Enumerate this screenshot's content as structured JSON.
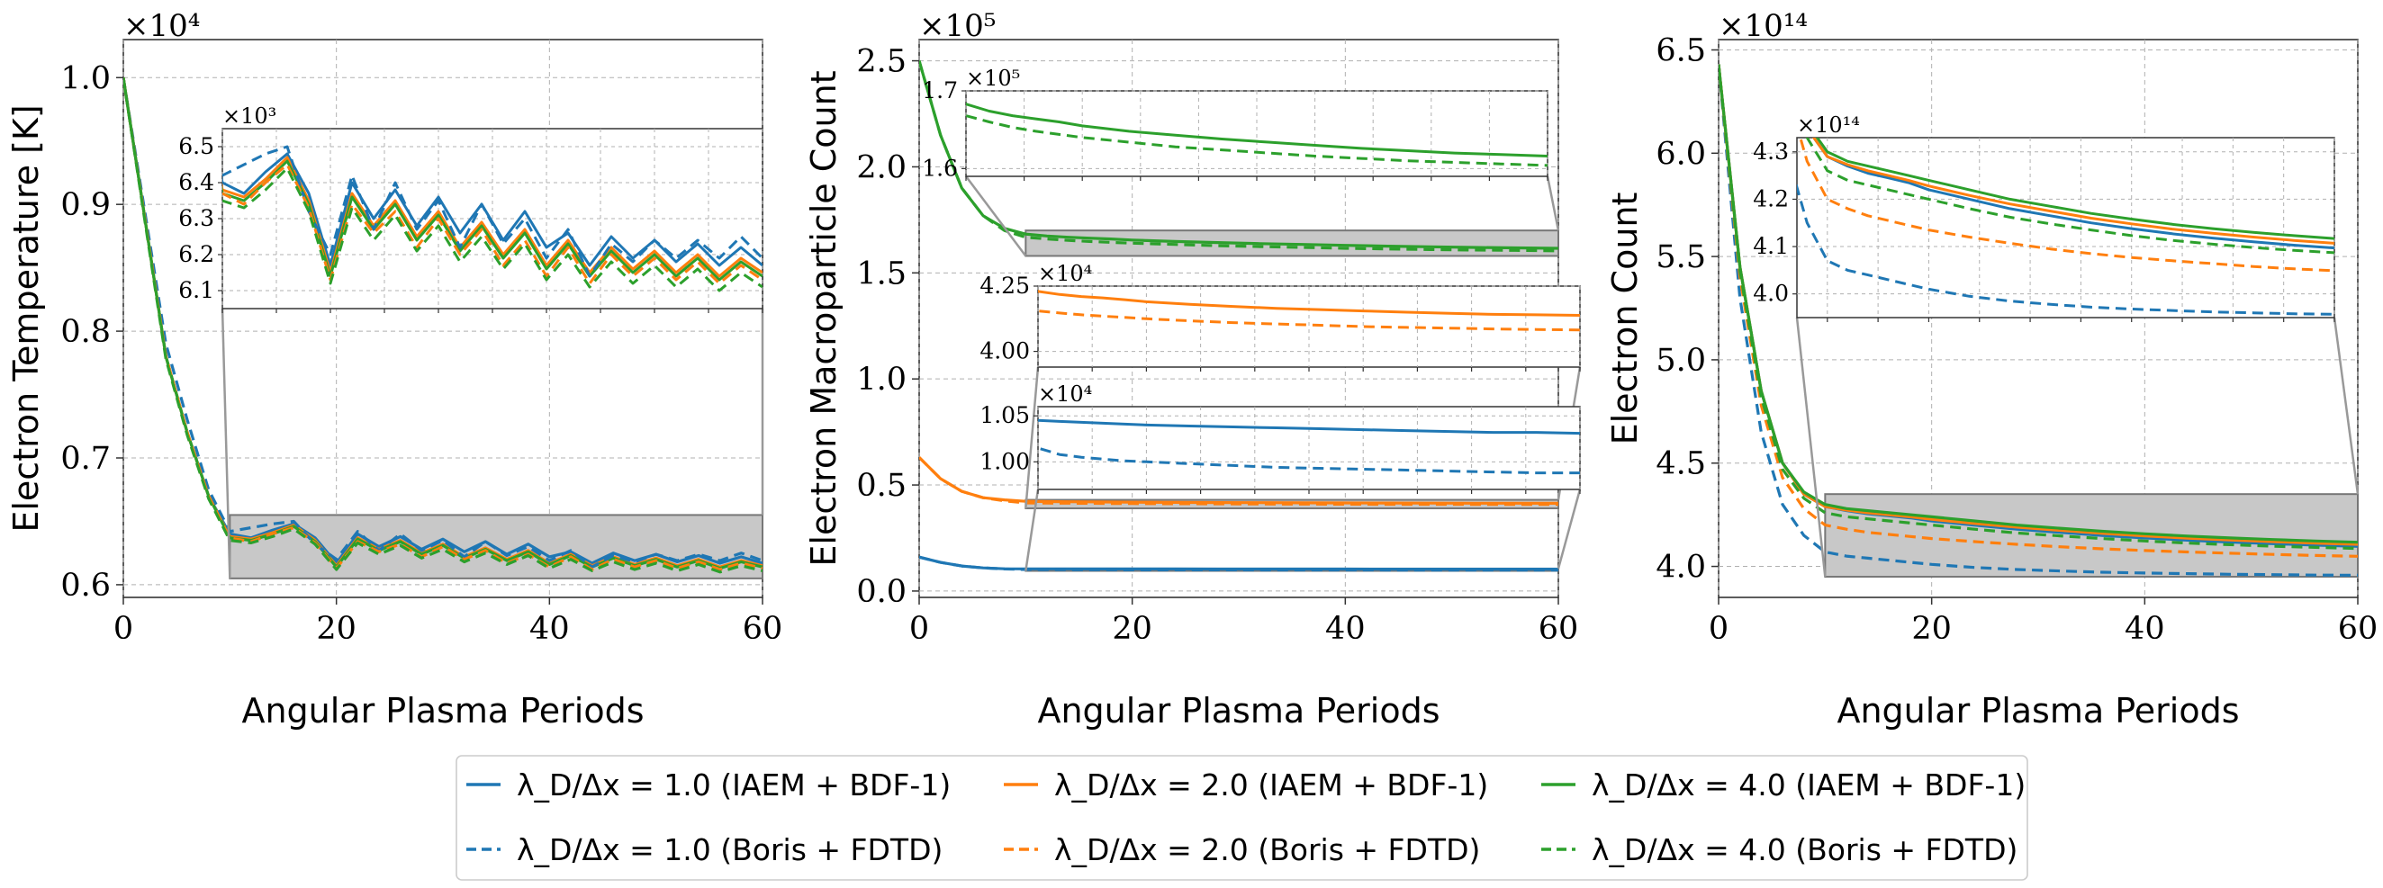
{
  "figure": {
    "legend": {
      "entries": [
        {
          "label": "λ_D/Δx = 1.0 (IAEM + BDF-1)",
          "color": "#1f77b4",
          "dash": false
        },
        {
          "label": "λ_D/Δx = 2.0 (IAEM + BDF-1)",
          "color": "#ff7f0e",
          "dash": false
        },
        {
          "label": "λ_D/Δx = 4.0 (IAEM + BDF-1)",
          "color": "#2ca02c",
          "dash": false
        },
        {
          "label": "λ_D/Δx = 1.0 (Boris + FDTD)",
          "color": "#1f77b4",
          "dash": true
        },
        {
          "label": "λ_D/Δx = 2.0 (Boris + FDTD)",
          "color": "#ff7f0e",
          "dash": true
        },
        {
          "label": "λ_D/Δx = 4.0 (Boris + FDTD)",
          "color": "#2ca02c",
          "dash": true
        }
      ]
    }
  },
  "chart_data": [
    {
      "type": "line",
      "id": "temperature",
      "xlabel": "Angular Plasma Periods",
      "ylabel": "Electron Temperature [K]",
      "multiplier": "×10⁴",
      "xlim": [
        0,
        60
      ],
      "ylim": [
        0.59,
        1.03
      ],
      "xticks": [
        "0",
        "20",
        "40",
        "60"
      ],
      "xtick_values": [
        0,
        20,
        40,
        60
      ],
      "yticks": [
        "0.6",
        "0.7",
        "0.8",
        "0.9",
        "1.0"
      ],
      "ytick_values": [
        0.6,
        0.7,
        0.8,
        0.9,
        1.0
      ],
      "x": [
        0,
        2,
        4,
        6,
        8,
        10,
        12,
        14,
        16,
        18,
        20,
        22,
        24,
        26,
        28,
        30,
        32,
        34,
        36,
        38,
        40,
        42,
        44,
        46,
        48,
        50,
        52,
        54,
        56,
        58,
        60
      ],
      "series": [
        {
          "name": "λ_D/Δx = 1.0 (IAEM + BDF-1)",
          "color": "#1f77b4",
          "dash": false,
          "values": [
            1.0,
            0.89,
            0.78,
            0.72,
            0.67,
            0.64,
            0.637,
            0.643,
            0.648,
            0.637,
            0.617,
            0.64,
            0.63,
            0.638,
            0.628,
            0.636,
            0.626,
            0.634,
            0.624,
            0.632,
            0.622,
            0.626,
            0.617,
            0.625,
            0.619,
            0.624,
            0.618,
            0.623,
            0.617,
            0.622,
            0.617
          ]
        },
        {
          "name": "λ_D/Δx = 2.0 (IAEM + BDF-1)",
          "color": "#ff7f0e",
          "dash": false,
          "values": [
            1.0,
            0.89,
            0.78,
            0.72,
            0.67,
            0.638,
            0.636,
            0.641,
            0.647,
            0.635,
            0.615,
            0.637,
            0.628,
            0.635,
            0.625,
            0.632,
            0.622,
            0.629,
            0.62,
            0.627,
            0.617,
            0.624,
            0.615,
            0.622,
            0.616,
            0.621,
            0.615,
            0.62,
            0.614,
            0.619,
            0.615
          ]
        },
        {
          "name": "λ_D/Δx = 4.0 (IAEM + BDF-1)",
          "color": "#2ca02c",
          "dash": false,
          "values": [
            1.0,
            0.89,
            0.78,
            0.72,
            0.67,
            0.637,
            0.635,
            0.64,
            0.646,
            0.634,
            0.614,
            0.636,
            0.627,
            0.634,
            0.624,
            0.631,
            0.621,
            0.628,
            0.619,
            0.626,
            0.616,
            0.623,
            0.614,
            0.621,
            0.615,
            0.62,
            0.614,
            0.619,
            0.613,
            0.618,
            0.614
          ]
        },
        {
          "name": "λ_D/Δx = 1.0 (Boris + FDTD)",
          "color": "#1f77b4",
          "dash": true,
          "values": [
            1.0,
            0.895,
            0.79,
            0.73,
            0.675,
            0.642,
            0.645,
            0.648,
            0.65,
            0.632,
            0.62,
            0.642,
            0.627,
            0.64,
            0.627,
            0.635,
            0.622,
            0.634,
            0.623,
            0.63,
            0.619,
            0.627,
            0.614,
            0.623,
            0.618,
            0.624,
            0.619,
            0.624,
            0.619,
            0.625,
            0.619
          ]
        },
        {
          "name": "λ_D/Δx = 2.0 (Boris + FDTD)",
          "color": "#ff7f0e",
          "dash": true,
          "values": [
            1.0,
            0.89,
            0.78,
            0.72,
            0.67,
            0.637,
            0.634,
            0.64,
            0.645,
            0.633,
            0.613,
            0.634,
            0.626,
            0.632,
            0.622,
            0.63,
            0.62,
            0.627,
            0.617,
            0.624,
            0.614,
            0.622,
            0.612,
            0.62,
            0.614,
            0.619,
            0.613,
            0.618,
            0.612,
            0.617,
            0.613
          ]
        },
        {
          "name": "λ_D/Δx = 4.0 (Boris + FDTD)",
          "color": "#2ca02c",
          "dash": true,
          "values": [
            1.0,
            0.888,
            0.778,
            0.718,
            0.668,
            0.635,
            0.633,
            0.638,
            0.644,
            0.632,
            0.612,
            0.633,
            0.624,
            0.631,
            0.621,
            0.628,
            0.618,
            0.625,
            0.616,
            0.623,
            0.613,
            0.62,
            0.611,
            0.618,
            0.612,
            0.617,
            0.611,
            0.616,
            0.61,
            0.615,
            0.611
          ]
        }
      ],
      "zoom_box": {
        "x": [
          10,
          60
        ],
        "y": [
          0.605,
          0.655
        ]
      },
      "insets": [
        {
          "multiplier": "×10³",
          "xlim": [
            10,
            60
          ],
          "ylim": [
            6.05,
            6.55
          ],
          "yticks": [
            "6.1",
            "6.2",
            "6.3",
            "6.4",
            "6.5"
          ],
          "ytick_values": [
            6.1,
            6.2,
            6.3,
            6.4,
            6.5
          ],
          "scale": 10
        }
      ]
    },
    {
      "type": "line",
      "id": "macroparticles",
      "xlabel": "Angular Plasma Periods",
      "ylabel": "Electron Macroparticle Count",
      "multiplier": "×10⁵",
      "xlim": [
        0,
        60
      ],
      "ylim": [
        -0.03,
        2.6
      ],
      "xticks": [
        "0",
        "20",
        "40",
        "60"
      ],
      "xtick_values": [
        0,
        20,
        40,
        60
      ],
      "yticks": [
        "0.0",
        "0.5",
        "1.0",
        "1.5",
        "2.0",
        "2.5"
      ],
      "ytick_values": [
        0.0,
        0.5,
        1.0,
        1.5,
        2.0,
        2.5
      ],
      "x": [
        0,
        2,
        4,
        6,
        8,
        10,
        12,
        14,
        16,
        18,
        20,
        24,
        28,
        32,
        36,
        40,
        44,
        48,
        52,
        56,
        60
      ],
      "series": [
        {
          "name": "λ_D/Δx = 1.0 (IAEM + BDF-1)",
          "color": "#1f77b4",
          "dash": false,
          "values": [
            0.16,
            0.135,
            0.118,
            0.109,
            0.105,
            0.1045,
            0.1044,
            0.1043,
            0.1042,
            0.1041,
            0.104,
            0.1039,
            0.1038,
            0.1037,
            0.1036,
            0.1035,
            0.1034,
            0.1033,
            0.1032,
            0.1032,
            0.1031
          ]
        },
        {
          "name": "λ_D/Δx = 2.0 (IAEM + BDF-1)",
          "color": "#ff7f0e",
          "dash": false,
          "values": [
            0.63,
            0.53,
            0.47,
            0.44,
            0.43,
            0.423,
            0.4218,
            0.421,
            0.4205,
            0.4198,
            0.419,
            0.418,
            0.4172,
            0.4165,
            0.416,
            0.4155,
            0.415,
            0.4146,
            0.4142,
            0.414,
            0.4138
          ]
        },
        {
          "name": "λ_D/Δx = 4.0 (IAEM + BDF-1)",
          "color": "#2ca02c",
          "dash": false,
          "values": [
            2.5,
            2.15,
            1.9,
            1.77,
            1.71,
            1.683,
            1.674,
            1.668,
            1.664,
            1.66,
            1.655,
            1.648,
            1.643,
            1.638,
            1.634,
            1.63,
            1.626,
            1.623,
            1.62,
            1.618,
            1.616
          ]
        },
        {
          "name": "λ_D/Δx = 1.0 (Boris + FDTD)",
          "color": "#1f77b4",
          "dash": true,
          "values": [
            0.16,
            0.135,
            0.118,
            0.109,
            0.104,
            0.1015,
            0.1008,
            0.1005,
            0.1003,
            0.1001,
            0.1,
            0.0998,
            0.0996,
            0.0994,
            0.0993,
            0.0992,
            0.0991,
            0.099,
            0.0989,
            0.0988,
            0.0988
          ]
        },
        {
          "name": "λ_D/Δx = 2.0 (Boris + FDTD)",
          "color": "#ff7f0e",
          "dash": true,
          "values": [
            0.63,
            0.53,
            0.47,
            0.44,
            0.425,
            0.4155,
            0.4147,
            0.414,
            0.4135,
            0.413,
            0.4125,
            0.4117,
            0.411,
            0.4105,
            0.41,
            0.4095,
            0.4092,
            0.4089,
            0.4086,
            0.4084,
            0.4082
          ]
        },
        {
          "name": "λ_D/Δx = 4.0 (Boris + FDTD)",
          "color": "#2ca02c",
          "dash": true,
          "values": [
            2.5,
            2.15,
            1.9,
            1.77,
            1.7,
            1.668,
            1.66,
            1.653,
            1.648,
            1.644,
            1.64,
            1.634,
            1.628,
            1.624,
            1.62,
            1.616,
            1.613,
            1.61,
            1.608,
            1.606,
            1.604
          ]
        }
      ],
      "zoom_boxes": [
        {
          "x": [
            10,
            60
          ],
          "y": [
            1.58,
            1.7
          ]
        },
        {
          "x": [
            10,
            60
          ],
          "y": [
            0.39,
            0.43
          ]
        },
        {
          "x": [
            10,
            60
          ],
          "y": [
            0.095,
            0.106
          ]
        }
      ],
      "insets": [
        {
          "multiplier": "×10⁵",
          "xlim": [
            10,
            60
          ],
          "ylim": [
            1.59,
            1.7
          ],
          "yticks": [
            "1.6",
            "1.7"
          ],
          "ytick_values": [
            1.6,
            1.7
          ],
          "scale": 1,
          "series_index": [
            2,
            5
          ]
        },
        {
          "multiplier": "×10⁴",
          "xlim": [
            10,
            60
          ],
          "ylim": [
            3.94,
            4.25
          ],
          "yticks": [
            "4.00",
            "4.25"
          ],
          "ytick_values": [
            4.0,
            4.25
          ],
          "scale": 10,
          "series_index": [
            1,
            4
          ]
        },
        {
          "multiplier": "×10⁴",
          "xlim": [
            10,
            60
          ],
          "ylim": [
            0.97,
            1.06
          ],
          "yticks": [
            "1.00",
            "1.05"
          ],
          "ytick_values": [
            1.0,
            1.05
          ],
          "scale": 10,
          "series_index": [
            0,
            3
          ]
        }
      ]
    },
    {
      "type": "line",
      "id": "electrons",
      "xlabel": "Angular Plasma Periods",
      "ylabel": "Electron Count",
      "multiplier": "×10¹⁴",
      "xlim": [
        0,
        60
      ],
      "ylim": [
        3.85,
        6.55
      ],
      "xticks": [
        "0",
        "20",
        "40",
        "60"
      ],
      "xtick_values": [
        0,
        20,
        40,
        60
      ],
      "yticks": [
        "4.0",
        "4.5",
        "5.0",
        "5.5",
        "6.0",
        "6.5"
      ],
      "ytick_values": [
        4.0,
        4.5,
        5.0,
        5.5,
        6.0,
        6.5
      ],
      "x": [
        0,
        2,
        4,
        6,
        8,
        10,
        12,
        14,
        16,
        18,
        20,
        24,
        28,
        32,
        36,
        40,
        44,
        48,
        52,
        56,
        60
      ],
      "series": [
        {
          "name": "λ_D/Δx = 1.0 (IAEM + BDF-1)",
          "color": "#1f77b4",
          "dash": false,
          "values": [
            6.43,
            5.45,
            4.85,
            4.5,
            4.35,
            4.29,
            4.27,
            4.255,
            4.245,
            4.235,
            4.22,
            4.2,
            4.18,
            4.165,
            4.15,
            4.138,
            4.127,
            4.118,
            4.11,
            4.103,
            4.097
          ]
        },
        {
          "name": "λ_D/Δx = 2.0 (IAEM + BDF-1)",
          "color": "#ff7f0e",
          "dash": false,
          "values": [
            6.43,
            5.45,
            4.85,
            4.5,
            4.35,
            4.29,
            4.273,
            4.26,
            4.25,
            4.24,
            4.228,
            4.208,
            4.19,
            4.175,
            4.16,
            4.148,
            4.137,
            4.128,
            4.12,
            4.113,
            4.107
          ]
        },
        {
          "name": "λ_D/Δx = 4.0 (IAEM + BDF-1)",
          "color": "#2ca02c",
          "dash": false,
          "values": [
            6.43,
            5.45,
            4.85,
            4.5,
            4.36,
            4.3,
            4.28,
            4.27,
            4.26,
            4.25,
            4.24,
            4.22,
            4.2,
            4.185,
            4.17,
            4.158,
            4.147,
            4.138,
            4.13,
            4.123,
            4.117
          ]
        },
        {
          "name": "λ_D/Δx = 1.0 (Boris + FDTD)",
          "color": "#1f77b4",
          "dash": true,
          "values": [
            6.43,
            5.3,
            4.65,
            4.3,
            4.15,
            4.07,
            4.05,
            4.04,
            4.03,
            4.02,
            4.01,
            3.995,
            3.985,
            3.978,
            3.972,
            3.968,
            3.965,
            3.962,
            3.96,
            3.958,
            3.957
          ]
        },
        {
          "name": "λ_D/Δx = 2.0 (Boris + FDTD)",
          "color": "#ff7f0e",
          "dash": true,
          "values": [
            6.43,
            5.4,
            4.78,
            4.43,
            4.28,
            4.2,
            4.18,
            4.165,
            4.155,
            4.145,
            4.135,
            4.12,
            4.107,
            4.095,
            4.085,
            4.077,
            4.07,
            4.064,
            4.058,
            4.053,
            4.049
          ]
        },
        {
          "name": "λ_D/Δx = 4.0 (Boris + FDTD)",
          "color": "#2ca02c",
          "dash": true,
          "values": [
            6.43,
            5.43,
            4.82,
            4.47,
            4.33,
            4.26,
            4.24,
            4.23,
            4.22,
            4.21,
            4.2,
            4.18,
            4.162,
            4.148,
            4.135,
            4.123,
            4.113,
            4.105,
            4.098,
            4.092,
            4.087
          ]
        }
      ],
      "zoom_box": {
        "x": [
          10,
          60
        ],
        "y": [
          3.95,
          4.35
        ]
      },
      "insets": [
        {
          "multiplier": "×10¹⁴",
          "xlim": [
            7,
            60
          ],
          "ylim": [
            3.95,
            4.33
          ],
          "yticks": [
            "4.0",
            "4.1",
            "4.2",
            "4.3"
          ],
          "ytick_values": [
            4.0,
            4.1,
            4.2,
            4.3
          ],
          "scale": 1
        }
      ]
    }
  ]
}
